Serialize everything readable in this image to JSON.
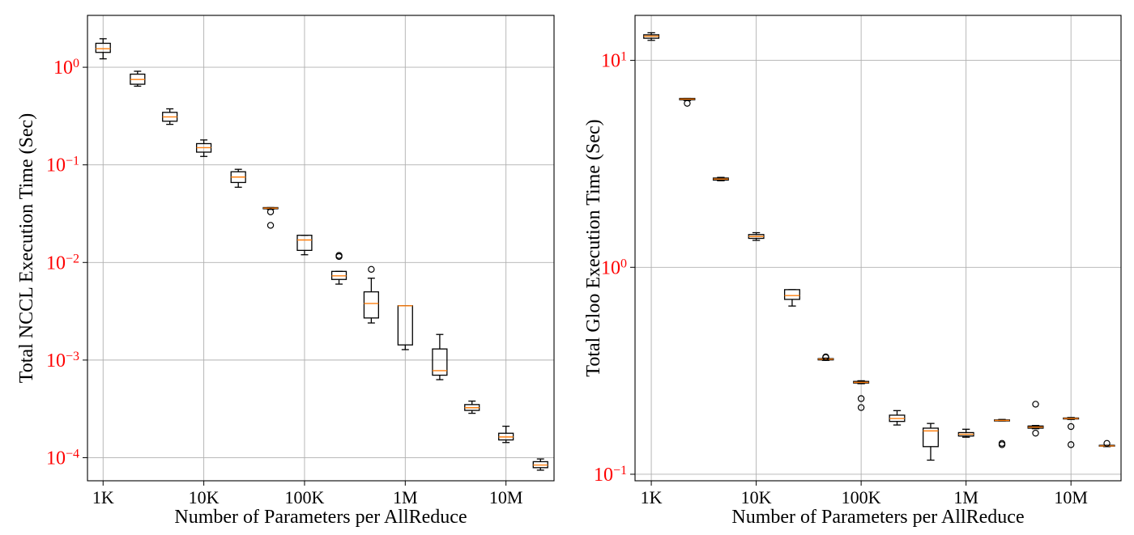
{
  "colors": {
    "grid": "#b0b0b0",
    "axis": "#000000",
    "box": "#000000",
    "median": "#ff7f0e",
    "ytick": "#ff0000",
    "xtick": "#000000"
  },
  "chart_data": [
    {
      "type": "box",
      "xlabel": "Number of Parameters per AllReduce",
      "ylabel": "Total NCCL Execution Time (Sec)",
      "xscale": "log",
      "yscale": "log",
      "grid": true,
      "xlim": [
        700,
        30000000
      ],
      "ylim": [
        5.8e-05,
        3.4
      ],
      "xticks": [
        {
          "value": 1000,
          "label": "1K"
        },
        {
          "value": 10000,
          "label": "10K"
        },
        {
          "value": 100000,
          "label": "100K"
        },
        {
          "value": 1000000,
          "label": "1M"
        },
        {
          "value": 10000000,
          "label": "10M"
        }
      ],
      "yticks": [
        {
          "value": 1,
          "base": "10",
          "exp": "0"
        },
        {
          "value": 0.1,
          "base": "10",
          "exp": "−1"
        },
        {
          "value": 0.01,
          "base": "10",
          "exp": "−2"
        },
        {
          "value": 0.001,
          "base": "10",
          "exp": "−3"
        },
        {
          "value": 0.0001,
          "base": "10",
          "exp": "−4"
        }
      ],
      "boxes": [
        {
          "x": 1000,
          "whislo": 1.22,
          "q1": 1.42,
          "med": 1.55,
          "q3": 1.76,
          "whishi": 1.96,
          "fliers": []
        },
        {
          "x": 2200,
          "whislo": 0.64,
          "q1": 0.67,
          "med": 0.75,
          "q3": 0.85,
          "whishi": 0.91,
          "fliers": []
        },
        {
          "x": 4600,
          "whislo": 0.26,
          "q1": 0.28,
          "med": 0.31,
          "q3": 0.345,
          "whishi": 0.375,
          "fliers": []
        },
        {
          "x": 10000,
          "whislo": 0.122,
          "q1": 0.135,
          "med": 0.15,
          "q3": 0.165,
          "whishi": 0.18,
          "fliers": []
        },
        {
          "x": 22000,
          "whislo": 0.059,
          "q1": 0.066,
          "med": 0.075,
          "q3": 0.085,
          "whishi": 0.09,
          "fliers": []
        },
        {
          "x": 46000,
          "whislo": 0.035,
          "q1": 0.0355,
          "med": 0.036,
          "q3": 0.0365,
          "whishi": 0.0365,
          "fliers": [
            0.033,
            0.024
          ]
        },
        {
          "x": 100000,
          "whislo": 0.012,
          "q1": 0.0133,
          "med": 0.017,
          "q3": 0.019,
          "whishi": 0.019,
          "fliers": []
        },
        {
          "x": 220000,
          "whislo": 0.006,
          "q1": 0.0067,
          "med": 0.0073,
          "q3": 0.0081,
          "whishi": 0.0081,
          "fliers": [
            0.0115,
            0.0118
          ]
        },
        {
          "x": 460000,
          "whislo": 0.0024,
          "q1": 0.0027,
          "med": 0.0038,
          "q3": 0.005,
          "whishi": 0.0069,
          "fliers": [
            0.0085
          ]
        },
        {
          "x": 1000000,
          "whislo": 0.00128,
          "q1": 0.00143,
          "med": 0.0036,
          "q3": 0.0036,
          "whishi": 0.0036,
          "fliers": []
        },
        {
          "x": 2200000,
          "whislo": 0.00063,
          "q1": 0.0007,
          "med": 0.00078,
          "q3": 0.0013,
          "whishi": 0.00183,
          "fliers": []
        },
        {
          "x": 4600000,
          "whislo": 0.000285,
          "q1": 0.000305,
          "med": 0.000325,
          "q3": 0.00035,
          "whishi": 0.00038,
          "fliers": []
        },
        {
          "x": 10000000,
          "whislo": 0.000143,
          "q1": 0.000152,
          "med": 0.000163,
          "q3": 0.000178,
          "whishi": 0.00021,
          "fliers": []
        },
        {
          "x": 22000000,
          "whislo": 7.45e-05,
          "q1": 7.9e-05,
          "med": 8.4e-05,
          "q3": 9.1e-05,
          "whishi": 9.7e-05,
          "fliers": []
        }
      ]
    },
    {
      "type": "box",
      "xlabel": "Number of Parameters per AllReduce",
      "ylabel": "Total Gloo Execution Time (Sec)",
      "xscale": "log",
      "yscale": "log",
      "grid": true,
      "xlim": [
        700,
        30000000
      ],
      "ylim": [
        0.093,
        16.5
      ],
      "xticks": [
        {
          "value": 1000,
          "label": "1K"
        },
        {
          "value": 10000,
          "label": "10K"
        },
        {
          "value": 100000,
          "label": "100K"
        },
        {
          "value": 1000000,
          "label": "1M"
        },
        {
          "value": 10000000,
          "label": "10M"
        }
      ],
      "yticks": [
        {
          "value": 10,
          "base": "10",
          "exp": "1"
        },
        {
          "value": 1,
          "base": "10",
          "exp": "0"
        },
        {
          "value": 0.1,
          "base": "10",
          "exp": "−1"
        }
      ],
      "boxes": [
        {
          "x": 1000,
          "whislo": 12.5,
          "q1": 12.8,
          "med": 13.1,
          "q3": 13.3,
          "whishi": 13.6,
          "fliers": []
        },
        {
          "x": 2200,
          "whislo": 6.4,
          "q1": 6.45,
          "med": 6.5,
          "q3": 6.55,
          "whishi": 6.55,
          "fliers": [
            6.2
          ]
        },
        {
          "x": 4600,
          "whislo": 2.62,
          "q1": 2.64,
          "med": 2.67,
          "q3": 2.7,
          "whishi": 2.72,
          "fliers": []
        },
        {
          "x": 10000,
          "whislo": 1.35,
          "q1": 1.38,
          "med": 1.41,
          "q3": 1.44,
          "whishi": 1.47,
          "fliers": []
        },
        {
          "x": 22000,
          "whislo": 0.65,
          "q1": 0.7,
          "med": 0.73,
          "q3": 0.78,
          "whishi": 0.78,
          "fliers": []
        },
        {
          "x": 46000,
          "whislo": 0.355,
          "q1": 0.357,
          "med": 0.36,
          "q3": 0.362,
          "whishi": 0.364,
          "fliers": [
            0.367,
            0.369
          ]
        },
        {
          "x": 100000,
          "whislo": 0.274,
          "q1": 0.276,
          "med": 0.278,
          "q3": 0.281,
          "whishi": 0.283,
          "fliers": [
            0.232,
            0.21
          ]
        },
        {
          "x": 220000,
          "whislo": 0.173,
          "q1": 0.18,
          "med": 0.186,
          "q3": 0.193,
          "whishi": 0.203,
          "fliers": []
        },
        {
          "x": 460000,
          "whislo": 0.117,
          "q1": 0.136,
          "med": 0.162,
          "q3": 0.167,
          "whishi": 0.176,
          "fliers": []
        },
        {
          "x": 1000000,
          "whislo": 0.151,
          "q1": 0.153,
          "med": 0.156,
          "q3": 0.159,
          "whishi": 0.165,
          "fliers": []
        },
        {
          "x": 2200000,
          "whislo": 0.181,
          "q1": 0.181,
          "med": 0.182,
          "q3": 0.183,
          "whishi": 0.184,
          "fliers": [
            0.141,
            0.139
          ]
        },
        {
          "x": 4600000,
          "whislo": 0.166,
          "q1": 0.167,
          "med": 0.169,
          "q3": 0.171,
          "whishi": 0.172,
          "fliers": [
            0.218,
            0.158
          ]
        },
        {
          "x": 10000000,
          "whislo": 0.184,
          "q1": 0.185,
          "med": 0.186,
          "q3": 0.187,
          "whishi": 0.188,
          "fliers": [
            0.17,
            0.139
          ]
        },
        {
          "x": 22000000,
          "whislo": 0.136,
          "q1": 0.137,
          "med": 0.137,
          "q3": 0.138,
          "whishi": 0.138,
          "fliers": [
            0.141
          ]
        }
      ]
    }
  ]
}
